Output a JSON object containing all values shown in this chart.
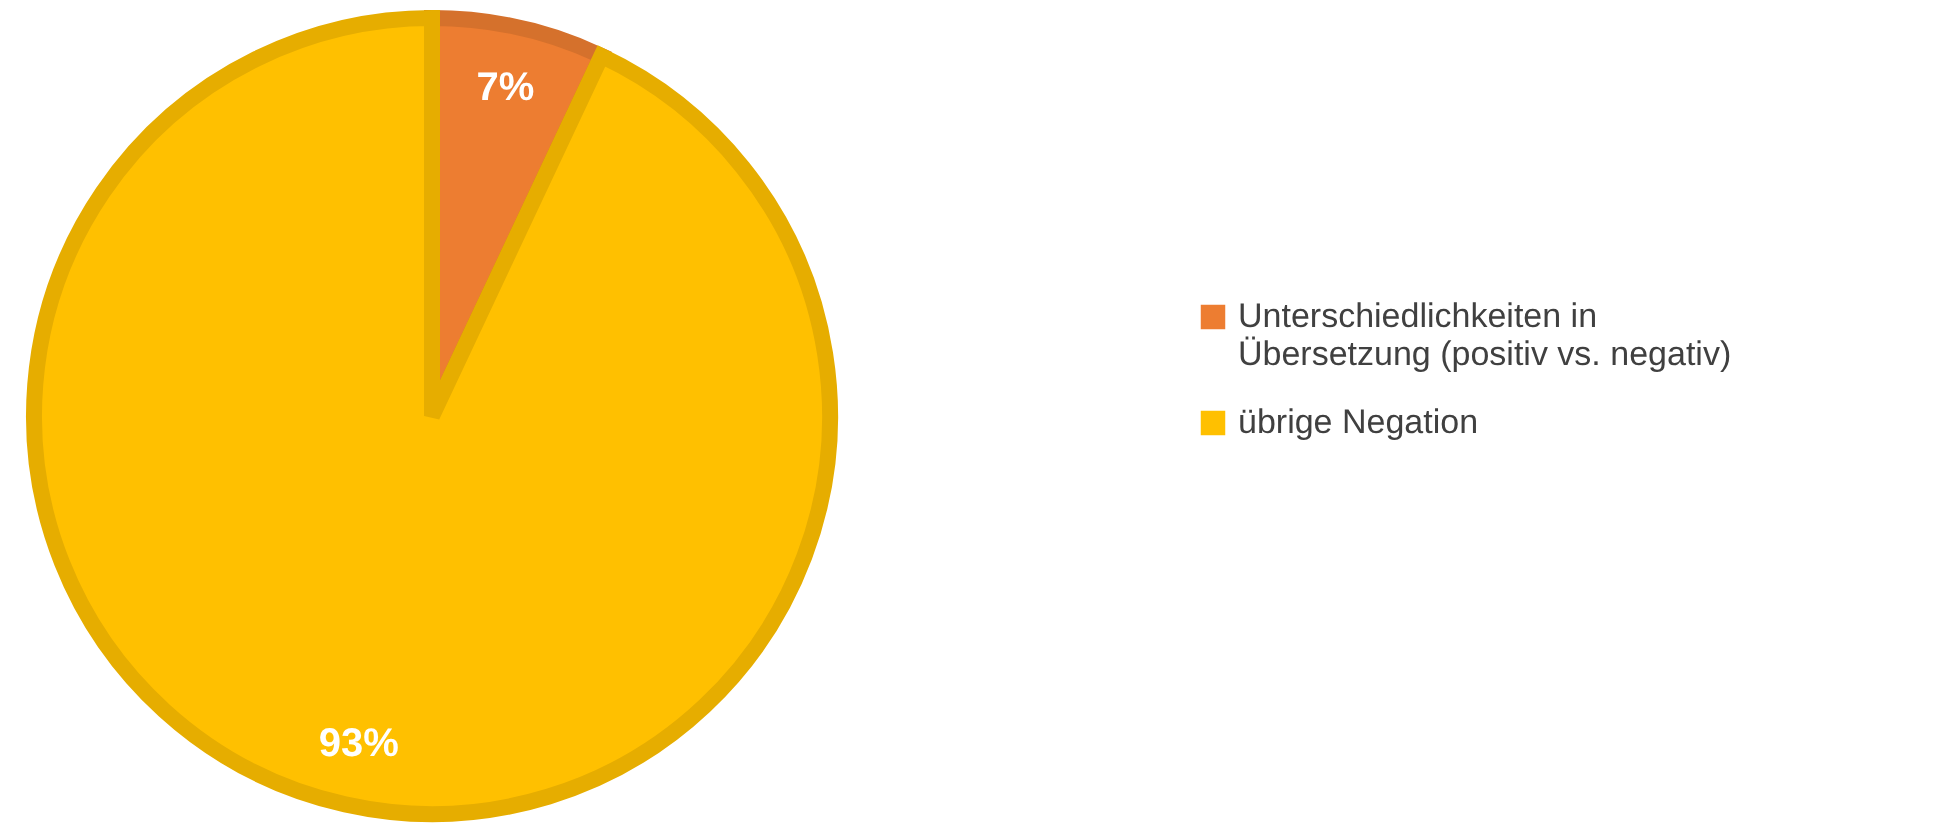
{
  "chart_data": {
    "type": "pie",
    "categories": [
      "Unterschiedlichkeiten in Übersetzung (positiv vs. negativ)",
      "übrige Negation"
    ],
    "values": [
      7,
      93
    ],
    "colors": [
      "#ed7d31",
      "#ffc000"
    ],
    "value_labels": [
      "7%",
      "93%"
    ],
    "legend": "right"
  }
}
